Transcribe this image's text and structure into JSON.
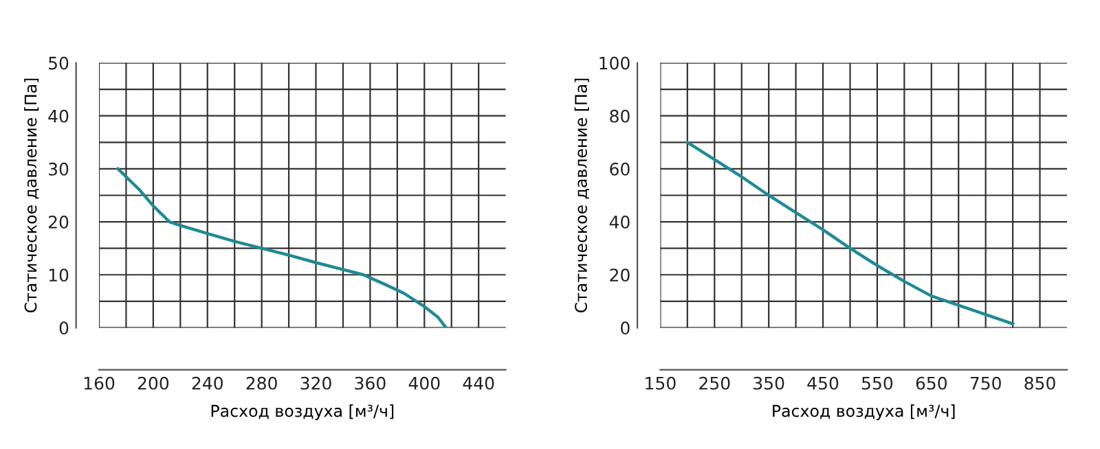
{
  "chart_data": [
    {
      "type": "line",
      "xlabel": "Расход воздуха [м³/ч]",
      "ylabel": "Статическое давление [Па]",
      "xlim": [
        160,
        460
      ],
      "ylim": [
        0,
        50
      ],
      "xticks": [
        160,
        {
          "value": 180,
          "label": null
        },
        200,
        {
          "value": 220,
          "label": null
        },
        240,
        {
          "value": 260,
          "label": null
        },
        280,
        {
          "value": 300,
          "label": null
        },
        320,
        {
          "value": 340,
          "label": null
        },
        360,
        {
          "value": 380,
          "label": null
        },
        400,
        {
          "value": 420,
          "label": null
        },
        440
      ],
      "yticks": [
        0,
        {
          "value": 5,
          "label": null
        },
        10,
        {
          "value": 15,
          "label": null
        },
        20,
        {
          "value": 25,
          "label": null
        },
        30,
        {
          "value": 35,
          "label": null
        },
        40,
        {
          "value": 45,
          "label": null
        },
        50
      ],
      "grid": true,
      "legend": false,
      "series": [
        {
          "color": "#1f8a94",
          "x": [
            174,
            190,
            200,
            212,
            220,
            240,
            260,
            280,
            300,
            320,
            340,
            355,
            370,
            385,
            400,
            410,
            416
          ],
          "values": [
            30,
            26,
            23,
            20,
            19.3,
            17.8,
            16.3,
            15,
            13.7,
            12.3,
            11,
            10,
            8.3,
            6.5,
            4,
            2,
            0
          ]
        }
      ]
    },
    {
      "type": "line",
      "xlabel": "Расход воздуха [м³/ч]",
      "ylabel": "Статическое давление [Па]",
      "xlim": [
        150,
        900
      ],
      "ylim": [
        0,
        100
      ],
      "xticks": [
        150,
        {
          "value": 200,
          "label": null
        },
        250,
        {
          "value": 300,
          "label": null
        },
        350,
        {
          "value": 400,
          "label": null
        },
        450,
        {
          "value": 500,
          "label": null
        },
        550,
        {
          "value": 600,
          "label": null
        },
        650,
        {
          "value": 700,
          "label": null
        },
        750,
        {
          "value": 800,
          "label": null
        },
        850
      ],
      "yticks": [
        0,
        {
          "value": 10,
          "label": null
        },
        20,
        {
          "value": 30,
          "label": null
        },
        40,
        {
          "value": 50,
          "label": null
        },
        60,
        {
          "value": 70,
          "label": null
        },
        80,
        {
          "value": 90,
          "label": null
        },
        100
      ],
      "grid": true,
      "legend": false,
      "series": [
        {
          "color": "#1f8a94",
          "x": [
            200,
            250,
            300,
            350,
            400,
            450,
            500,
            550,
            600,
            650,
            700,
            750,
            800
          ],
          "values": [
            70,
            63.5,
            57,
            50,
            43.5,
            37,
            30,
            23.5,
            17.5,
            12,
            8.5,
            5,
            1.5
          ]
        }
      ]
    }
  ]
}
